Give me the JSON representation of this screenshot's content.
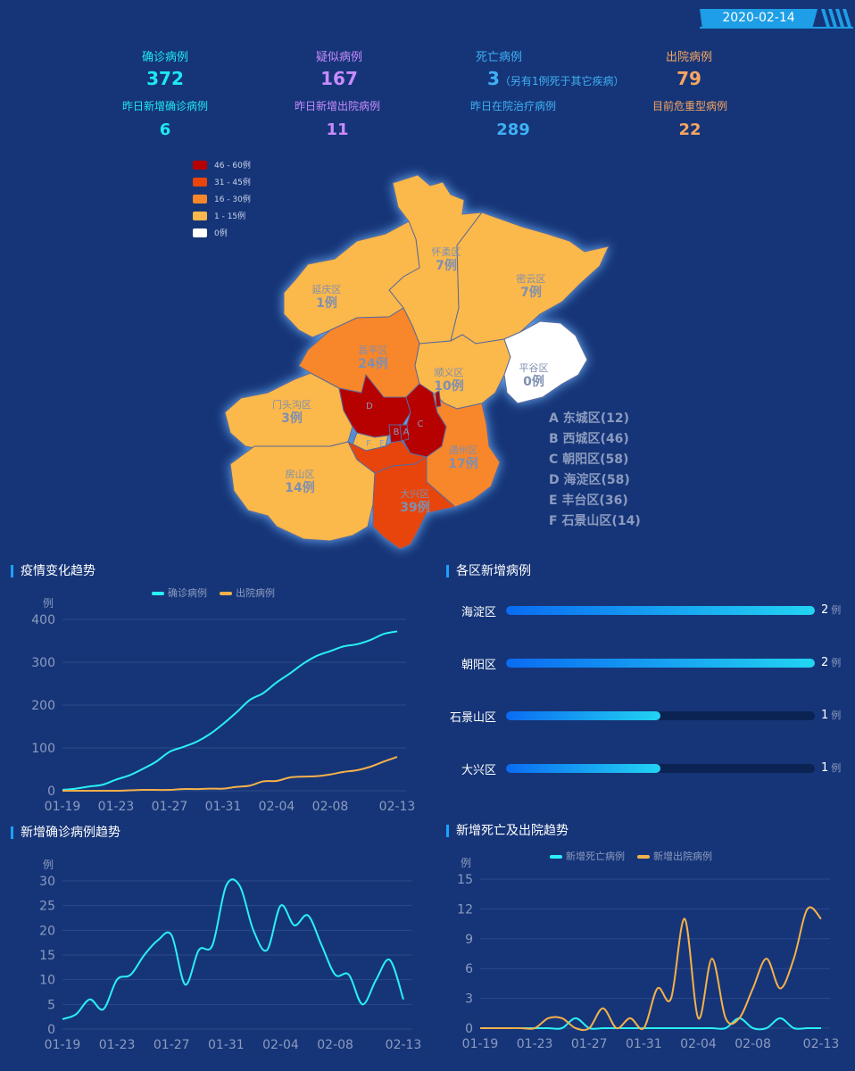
{
  "date": "2020-02-14",
  "stats": [
    {
      "label": "确诊病例",
      "value": "372",
      "note": "",
      "color": "#1ee8f6"
    },
    {
      "label": "疑似病例",
      "value": "167",
      "note": "",
      "color": "#c88bff"
    },
    {
      "label": "死亡病例",
      "value": "3",
      "note": "（另有1例死于其它疾病）",
      "color": "#3fb0f5"
    },
    {
      "label": "出院病例",
      "value": "79",
      "note": "",
      "color": "#f7a560"
    }
  ],
  "stats2": [
    {
      "label": "昨日新增确诊病例",
      "value": "6",
      "color": "#1ee8f6"
    },
    {
      "label": "昨日新增出院病例",
      "value": "11",
      "color": "#c88bff"
    },
    {
      "label": "昨日在院治疗病例",
      "value": "289",
      "color": "#3fb0f5"
    },
    {
      "label": "目前危重型病例",
      "value": "22",
      "color": "#f7a560"
    }
  ],
  "legend": [
    {
      "label": "46 - 60例",
      "color": "#b70000"
    },
    {
      "label": "31 - 45例",
      "color": "#e8440c"
    },
    {
      "label": "16 - 30例",
      "color": "#f8862a"
    },
    {
      "label": "1 - 15例",
      "color": "#fbb84c"
    },
    {
      "label": "0例",
      "color": "#ffffff"
    }
  ],
  "districts": [
    {
      "name": "怀柔区",
      "count": "7例"
    },
    {
      "name": "密云区",
      "count": "7例"
    },
    {
      "name": "延庆区",
      "count": "1例"
    },
    {
      "name": "昌平区",
      "count": "24例"
    },
    {
      "name": "顺义区",
      "count": "10例"
    },
    {
      "name": "平谷区",
      "count": "0例"
    },
    {
      "name": "门头沟区",
      "count": "3例"
    },
    {
      "name": "通州区",
      "count": "17例"
    },
    {
      "name": "房山区",
      "count": "14例"
    },
    {
      "name": "大兴区",
      "count": "39例"
    }
  ],
  "map_letters": [
    "D",
    "C",
    "B",
    "A",
    "E",
    "F"
  ],
  "abbreviations": [
    "A 东城区(12)",
    "B 西城区(46)",
    "C 朝阳区(58)",
    "D 海淀区(58)",
    "E 丰台区(36)",
    "F 石景山区(14)"
  ],
  "sections": {
    "trend": "疫情变化趋势",
    "district_new": "各区新增病例",
    "new_confirmed": "新增确诊病例趋势",
    "new_death_discharge": "新增死亡及出院趋势"
  },
  "district_bars": {
    "max": 2,
    "unit": "例",
    "items": [
      {
        "name": "海淀区",
        "value": 2
      },
      {
        "name": "朝阳区",
        "value": 2
      },
      {
        "name": "石景山区",
        "value": 1
      },
      {
        "name": "大兴区",
        "value": 1
      }
    ]
  },
  "chart_data": [
    {
      "type": "line",
      "title": "疫情变化趋势",
      "ylabel": "例",
      "ylim": [
        0,
        400
      ],
      "yticks": [
        0,
        100,
        200,
        300,
        400
      ],
      "xticks": [
        "01-19",
        "01-23",
        "01-27",
        "01-31",
        "02-04",
        "02-08",
        "02-13"
      ],
      "x": [
        "01-19",
        "01-20",
        "01-21",
        "01-22",
        "01-23",
        "01-24",
        "01-25",
        "01-26",
        "01-27",
        "01-28",
        "01-29",
        "01-30",
        "01-31",
        "02-01",
        "02-02",
        "02-03",
        "02-04",
        "02-05",
        "02-06",
        "02-07",
        "02-08",
        "02-09",
        "02-10",
        "02-11",
        "02-12",
        "02-13"
      ],
      "series": [
        {
          "name": "确诊病例",
          "color": "#2af0f5",
          "values": [
            2,
            5,
            10,
            14,
            26,
            36,
            51,
            68,
            91,
            102,
            114,
            132,
            156,
            183,
            212,
            228,
            253,
            274,
            297,
            315,
            326,
            337,
            342,
            352,
            366,
            372
          ]
        },
        {
          "name": "出院病例",
          "color": "#f5b14a",
          "values": [
            0,
            0,
            0,
            0,
            0,
            1,
            2,
            2,
            2,
            4,
            4,
            5,
            5,
            9,
            12,
            22,
            23,
            31,
            33,
            34,
            38,
            44,
            48,
            56,
            68,
            79
          ]
        }
      ],
      "legend_position": "top"
    },
    {
      "type": "line",
      "title": "新增确诊病例趋势",
      "ylabel": "例",
      "ylim": [
        0,
        30
      ],
      "yticks": [
        0,
        5,
        10,
        15,
        20,
        25,
        30
      ],
      "xticks": [
        "01-19",
        "01-23",
        "01-27",
        "01-31",
        "02-04",
        "02-08",
        "02-13"
      ],
      "x": [
        "01-19",
        "01-20",
        "01-21",
        "01-22",
        "01-23",
        "01-24",
        "01-25",
        "01-26",
        "01-27",
        "01-28",
        "01-29",
        "01-30",
        "01-31",
        "02-01",
        "02-02",
        "02-03",
        "02-04",
        "02-05",
        "02-06",
        "02-07",
        "02-08",
        "02-09",
        "02-10",
        "02-11",
        "02-12",
        "02-13"
      ],
      "series": [
        {
          "name": "新增确诊病例",
          "color": "#2af0f5",
          "values": [
            2,
            3,
            6,
            4,
            10,
            11,
            15,
            18,
            19,
            9,
            16,
            17,
            29,
            29,
            20,
            16,
            25,
            21,
            23,
            17,
            11,
            11,
            5,
            10,
            14,
            6
          ]
        }
      ]
    },
    {
      "type": "line",
      "title": "新增死亡及出院趋势",
      "ylabel": "例",
      "ylim": [
        0,
        15
      ],
      "yticks": [
        0,
        3,
        6,
        9,
        12,
        15
      ],
      "xticks": [
        "01-19",
        "01-23",
        "01-27",
        "01-31",
        "02-04",
        "02-08",
        "02-13"
      ],
      "x": [
        "01-19",
        "01-20",
        "01-21",
        "01-22",
        "01-23",
        "01-24",
        "01-25",
        "01-26",
        "01-27",
        "01-28",
        "01-29",
        "01-30",
        "01-31",
        "02-01",
        "02-02",
        "02-03",
        "02-04",
        "02-05",
        "02-06",
        "02-07",
        "02-08",
        "02-09",
        "02-10",
        "02-11",
        "02-12",
        "02-13"
      ],
      "series": [
        {
          "name": "新增死亡病例",
          "color": "#2af0f5",
          "values": [
            0,
            0,
            0,
            0,
            0,
            0,
            0,
            1,
            0,
            0,
            0,
            0,
            0,
            0,
            0,
            0,
            0,
            0,
            0,
            1,
            0,
            0,
            1,
            0,
            0,
            0
          ]
        },
        {
          "name": "新增出院病例",
          "color": "#f5b14a",
          "values": [
            0,
            0,
            0,
            0,
            0,
            1,
            1,
            0,
            0,
            2,
            0,
            1,
            0,
            4,
            3,
            11,
            1,
            7,
            1,
            1,
            4,
            7,
            4,
            7,
            12,
            11
          ]
        }
      ],
      "legend_position": "top"
    }
  ]
}
